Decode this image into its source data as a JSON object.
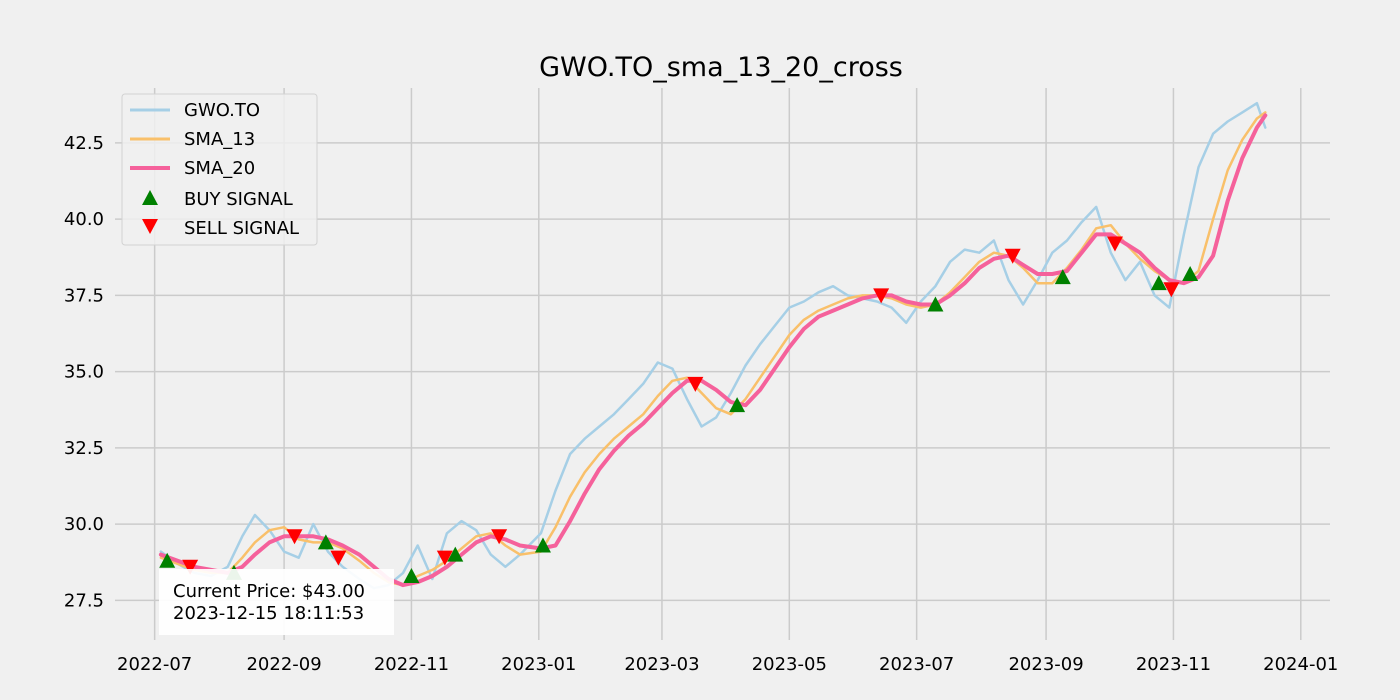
{
  "chart_data": {
    "type": "line",
    "title": "GWO.TO_sma_13_20_cross",
    "xlabel": "",
    "ylabel": "",
    "x_range": [
      "2022-06-12",
      "2024-01-15"
    ],
    "ylim": [
      26.2,
      44.3
    ],
    "grid": true,
    "legend_position": "top-left",
    "x_ticks": [
      "2022-07-01",
      "2022-09-01",
      "2022-11-01",
      "2023-01-01",
      "2023-03-01",
      "2023-05-01",
      "2023-07-01",
      "2023-09-01",
      "2023-11-01",
      "2024-01-01"
    ],
    "x_tick_labels": [
      "2022-07",
      "2022-09",
      "2022-11",
      "2023-01",
      "2023-03",
      "2023-05",
      "2023-07",
      "2023-09",
      "2023-11",
      "2024-01"
    ],
    "y_ticks": [
      27.5,
      30.0,
      32.5,
      35.0,
      37.5,
      40.0,
      42.5
    ],
    "y_tick_labels": [
      "27.5",
      "30.0",
      "32.5",
      "35.0",
      "37.5",
      "40.0",
      "42.5"
    ],
    "colors": {
      "background": "#f0f0f0",
      "grid": "#cbcbcb",
      "price": "#a6cfe6",
      "sma13": "#f9c06a",
      "sma20": "#f5619b",
      "buy": "#008000",
      "sell": "#ff0000"
    },
    "series": [
      {
        "name": "GWO.TO",
        "x": [
          "2022-07-04",
          "2022-07-12",
          "2022-07-20",
          "2022-07-28",
          "2022-08-05",
          "2022-08-12",
          "2022-08-18",
          "2022-08-25",
          "2022-09-01",
          "2022-09-08",
          "2022-09-15",
          "2022-09-22",
          "2022-09-29",
          "2022-10-07",
          "2022-10-14",
          "2022-10-21",
          "2022-10-28",
          "2022-11-04",
          "2022-11-11",
          "2022-11-18",
          "2022-11-25",
          "2022-12-02",
          "2022-12-09",
          "2022-12-16",
          "2022-12-23",
          "2023-01-02",
          "2023-01-09",
          "2023-01-16",
          "2023-01-23",
          "2023-01-30",
          "2023-02-06",
          "2023-02-13",
          "2023-02-20",
          "2023-02-27",
          "2023-03-06",
          "2023-03-13",
          "2023-03-20",
          "2023-03-27",
          "2023-04-03",
          "2023-04-10",
          "2023-04-17",
          "2023-04-24",
          "2023-05-01",
          "2023-05-08",
          "2023-05-15",
          "2023-05-22",
          "2023-05-29",
          "2023-06-05",
          "2023-06-12",
          "2023-06-19",
          "2023-06-26",
          "2023-07-03",
          "2023-07-10",
          "2023-07-17",
          "2023-07-24",
          "2023-07-31",
          "2023-08-07",
          "2023-08-14",
          "2023-08-21",
          "2023-08-28",
          "2023-09-04",
          "2023-09-11",
          "2023-09-18",
          "2023-09-25",
          "2023-10-02",
          "2023-10-09",
          "2023-10-16",
          "2023-10-23",
          "2023-10-30",
          "2023-11-06",
          "2023-11-13",
          "2023-11-20",
          "2023-11-27",
          "2023-12-04",
          "2023-12-11",
          "2023-12-15"
        ],
        "values": [
          29.1,
          28.7,
          28.4,
          28.3,
          28.6,
          29.6,
          30.3,
          29.8,
          29.1,
          28.9,
          30.0,
          29.1,
          28.6,
          28.2,
          27.9,
          28.0,
          28.4,
          29.3,
          28.2,
          29.7,
          30.1,
          29.8,
          29.0,
          28.6,
          29.0,
          29.7,
          31.1,
          32.3,
          32.8,
          33.2,
          33.6,
          34.1,
          34.6,
          35.3,
          35.1,
          34.1,
          33.2,
          33.5,
          34.3,
          35.2,
          35.9,
          36.5,
          37.1,
          37.3,
          37.6,
          37.8,
          37.5,
          37.4,
          37.3,
          37.1,
          36.6,
          37.3,
          37.8,
          38.6,
          39.0,
          38.9,
          39.3,
          38.0,
          37.2,
          38.0,
          38.9,
          39.3,
          39.9,
          40.4,
          38.9,
          38.0,
          38.6,
          37.5,
          37.1,
          39.5,
          41.7,
          42.8,
          43.2,
          43.5,
          43.8,
          43.0
        ]
      },
      {
        "name": "SMA_13",
        "x": [
          "2022-07-04",
          "2022-07-12",
          "2022-07-20",
          "2022-07-28",
          "2022-08-05",
          "2022-08-12",
          "2022-08-18",
          "2022-08-25",
          "2022-09-01",
          "2022-09-08",
          "2022-09-15",
          "2022-09-22",
          "2022-09-29",
          "2022-10-07",
          "2022-10-14",
          "2022-10-21",
          "2022-10-28",
          "2022-11-04",
          "2022-11-11",
          "2022-11-18",
          "2022-11-25",
          "2022-12-02",
          "2022-12-09",
          "2022-12-16",
          "2022-12-23",
          "2023-01-02",
          "2023-01-09",
          "2023-01-16",
          "2023-01-23",
          "2023-01-30",
          "2023-02-06",
          "2023-02-13",
          "2023-02-20",
          "2023-02-27",
          "2023-03-06",
          "2023-03-13",
          "2023-03-20",
          "2023-03-27",
          "2023-04-03",
          "2023-04-10",
          "2023-04-17",
          "2023-04-24",
          "2023-05-01",
          "2023-05-08",
          "2023-05-15",
          "2023-05-22",
          "2023-05-29",
          "2023-06-05",
          "2023-06-12",
          "2023-06-19",
          "2023-06-26",
          "2023-07-03",
          "2023-07-10",
          "2023-07-17",
          "2023-07-24",
          "2023-07-31",
          "2023-08-07",
          "2023-08-14",
          "2023-08-21",
          "2023-08-28",
          "2023-09-04",
          "2023-09-11",
          "2023-09-18",
          "2023-09-25",
          "2023-10-02",
          "2023-10-09",
          "2023-10-16",
          "2023-10-23",
          "2023-10-30",
          "2023-11-06",
          "2023-11-13",
          "2023-11-20",
          "2023-11-27",
          "2023-12-04",
          "2023-12-11",
          "2023-12-15"
        ],
        "values": [
          28.9,
          28.7,
          28.5,
          28.4,
          28.4,
          28.9,
          29.4,
          29.8,
          29.9,
          29.5,
          29.4,
          29.4,
          29.2,
          28.8,
          28.4,
          28.1,
          28.0,
          28.3,
          28.5,
          28.8,
          29.2,
          29.6,
          29.7,
          29.3,
          29.0,
          29.1,
          29.9,
          30.9,
          31.7,
          32.3,
          32.8,
          33.2,
          33.6,
          34.2,
          34.7,
          34.8,
          34.3,
          33.8,
          33.6,
          34.1,
          34.8,
          35.5,
          36.2,
          36.7,
          37.0,
          37.2,
          37.4,
          37.5,
          37.5,
          37.4,
          37.2,
          37.1,
          37.2,
          37.6,
          38.1,
          38.6,
          38.9,
          38.8,
          38.4,
          37.9,
          37.9,
          38.4,
          39.0,
          39.7,
          39.8,
          39.2,
          38.7,
          38.3,
          38.0,
          37.9,
          38.3,
          40.0,
          41.6,
          42.6,
          43.3,
          43.5
        ]
      },
      {
        "name": "SMA_20",
        "x": [
          "2022-07-04",
          "2022-07-12",
          "2022-07-20",
          "2022-07-28",
          "2022-08-05",
          "2022-08-12",
          "2022-08-18",
          "2022-08-25",
          "2022-09-01",
          "2022-09-08",
          "2022-09-15",
          "2022-09-22",
          "2022-09-29",
          "2022-10-07",
          "2022-10-14",
          "2022-10-21",
          "2022-10-28",
          "2022-11-04",
          "2022-11-11",
          "2022-11-18",
          "2022-11-25",
          "2022-12-02",
          "2022-12-09",
          "2022-12-16",
          "2022-12-23",
          "2023-01-02",
          "2023-01-09",
          "2023-01-16",
          "2023-01-23",
          "2023-01-30",
          "2023-02-06",
          "2023-02-13",
          "2023-02-20",
          "2023-02-27",
          "2023-03-06",
          "2023-03-13",
          "2023-03-20",
          "2023-03-27",
          "2023-04-03",
          "2023-04-10",
          "2023-04-17",
          "2023-04-24",
          "2023-05-01",
          "2023-05-08",
          "2023-05-15",
          "2023-05-22",
          "2023-05-29",
          "2023-06-05",
          "2023-06-12",
          "2023-06-19",
          "2023-06-26",
          "2023-07-03",
          "2023-07-10",
          "2023-07-17",
          "2023-07-24",
          "2023-07-31",
          "2023-08-07",
          "2023-08-14",
          "2023-08-21",
          "2023-08-28",
          "2023-09-04",
          "2023-09-11",
          "2023-09-18",
          "2023-09-25",
          "2023-10-02",
          "2023-10-09",
          "2023-10-16",
          "2023-10-23",
          "2023-10-30",
          "2023-11-06",
          "2023-11-13",
          "2023-11-20",
          "2023-11-27",
          "2023-12-04",
          "2023-12-11",
          "2023-12-15"
        ],
        "values": [
          29.0,
          28.8,
          28.6,
          28.5,
          28.4,
          28.6,
          29.0,
          29.4,
          29.6,
          29.6,
          29.6,
          29.5,
          29.3,
          29.0,
          28.6,
          28.2,
          28.0,
          28.1,
          28.3,
          28.6,
          29.0,
          29.4,
          29.6,
          29.5,
          29.3,
          29.2,
          29.3,
          30.1,
          31.0,
          31.8,
          32.4,
          32.9,
          33.3,
          33.8,
          34.3,
          34.7,
          34.7,
          34.4,
          34.0,
          33.9,
          34.4,
          35.1,
          35.8,
          36.4,
          36.8,
          37.0,
          37.2,
          37.4,
          37.5,
          37.5,
          37.3,
          37.2,
          37.2,
          37.5,
          37.9,
          38.4,
          38.7,
          38.8,
          38.5,
          38.2,
          38.2,
          38.3,
          38.9,
          39.5,
          39.5,
          39.2,
          38.9,
          38.4,
          38.0,
          37.9,
          38.1,
          38.8,
          40.6,
          42.0,
          43.0,
          43.4
        ]
      }
    ],
    "buy_signals": {
      "name": "BUY SIGNAL",
      "x": [
        "2022-07-07",
        "2022-08-08",
        "2022-09-21",
        "2022-11-01",
        "2022-11-22",
        "2023-01-03",
        "2023-04-06",
        "2023-07-10",
        "2023-09-09",
        "2023-10-25",
        "2023-11-09"
      ],
      "values": [
        28.8,
        28.4,
        29.4,
        28.3,
        29.0,
        29.3,
        33.9,
        37.2,
        38.1,
        37.9,
        38.2
      ]
    },
    "sell_signals": {
      "name": "SELL SIGNAL",
      "x": [
        "2022-07-18",
        "2022-09-06",
        "2022-09-27",
        "2022-11-17",
        "2022-12-13",
        "2023-03-17",
        "2023-06-14",
        "2023-08-16",
        "2023-10-04",
        "2023-10-31"
      ],
      "values": [
        28.6,
        29.6,
        28.9,
        28.9,
        29.6,
        34.6,
        37.5,
        38.8,
        39.2,
        37.7
      ]
    },
    "annotation": {
      "line1": "Current Price: $43.00",
      "line2": "2023-12-15 18:11:53"
    }
  }
}
